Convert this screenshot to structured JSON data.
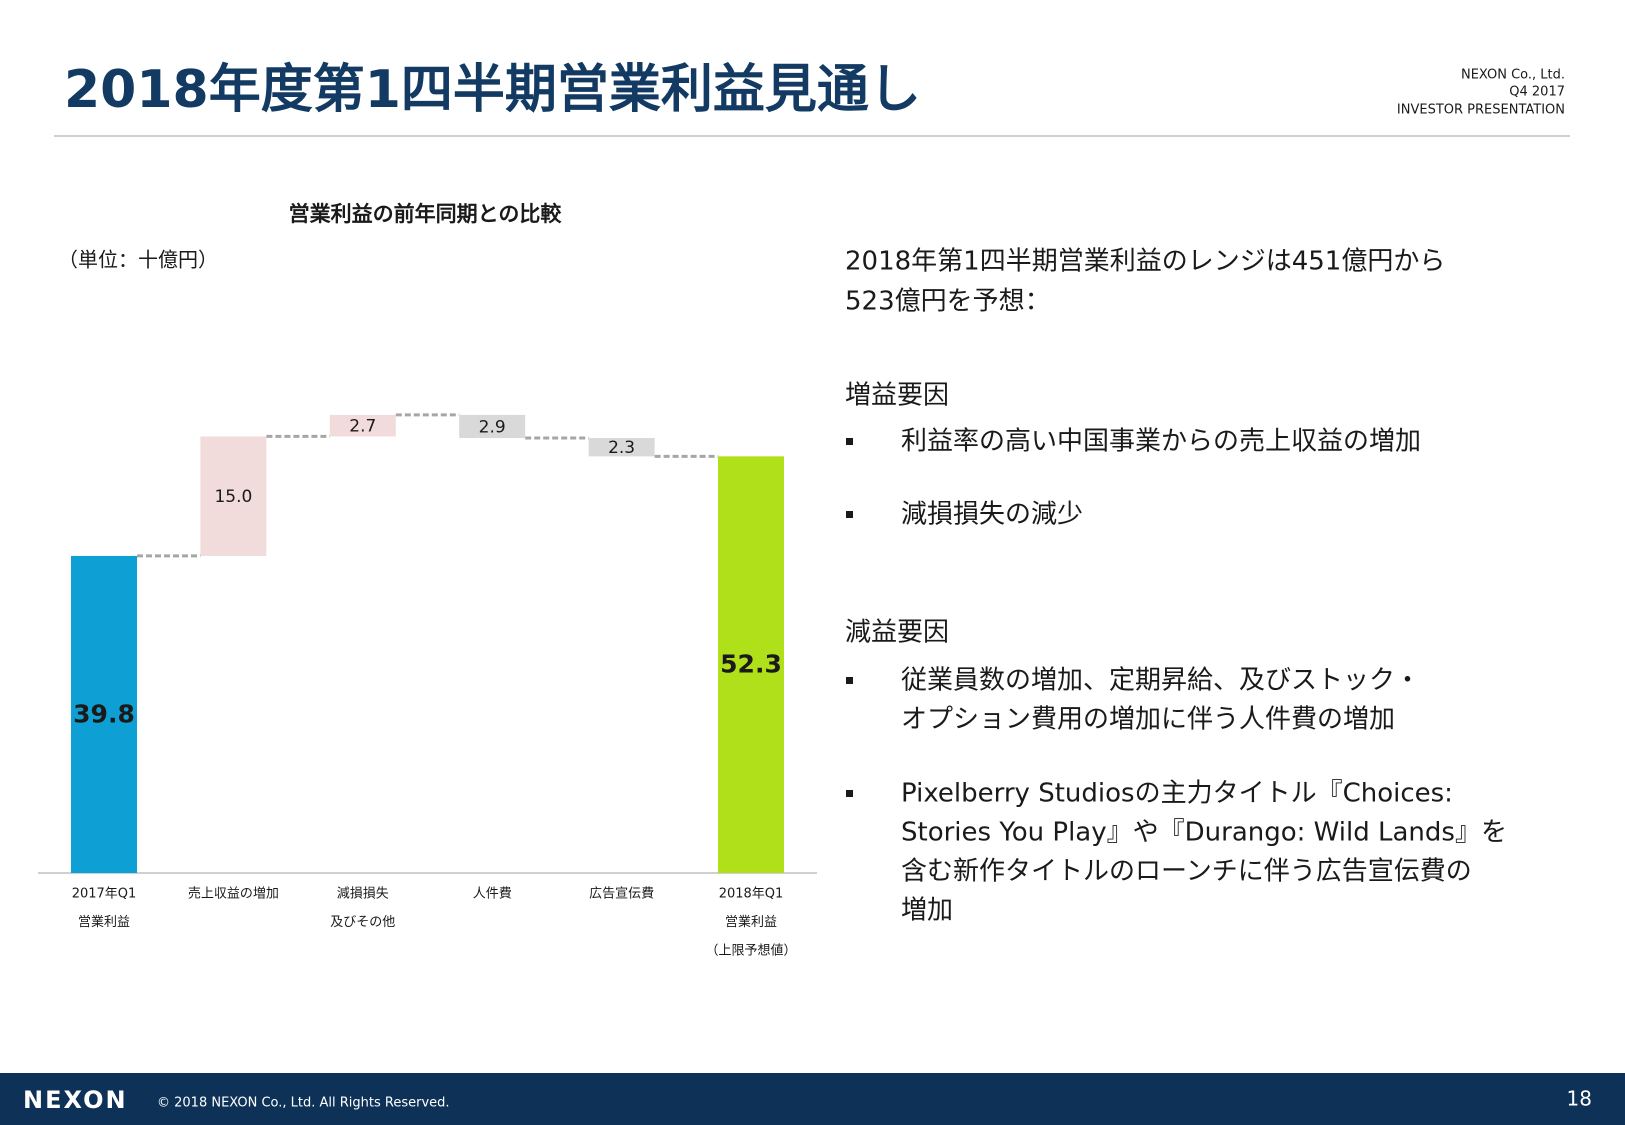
{
  "header": {
    "title": "2018年度第1四半期営業利益見通し",
    "company": [
      "NEXON Co., Ltd.",
      "Q4 2017",
      "INVESTOR PRESENTATION"
    ]
  },
  "chart_data": {
    "type": "waterfall",
    "title": "営業利益の前年同期との比較",
    "unit_label": "（単位：十億円）",
    "categories": [
      [
        "2017年Q1",
        "営業利益"
      ],
      [
        "売上収益の増加"
      ],
      [
        "減損損失",
        "及びその他"
      ],
      [
        "人件費"
      ],
      [
        "広告宣伝費"
      ],
      [
        "2018年Q1",
        "営業利益",
        "（上限予想値）"
      ]
    ],
    "values": [
      39.8,
      15.0,
      2.7,
      2.9,
      2.3,
      52.3
    ],
    "value_labels": [
      "39.8",
      "15.0",
      "2.7",
      "2.9",
      "2.3",
      "52.3"
    ],
    "measures": [
      "absolute",
      "increase",
      "increase",
      "decrease",
      "decrease",
      "absolute"
    ],
    "colors": [
      "#0ea0d4",
      "#f2dcdb",
      "#f2dcdb",
      "#d9d9d9",
      "#d9d9d9",
      "#b0e01a"
    ],
    "ylim": [
      0,
      60
    ]
  },
  "summary": [
    "2018年第1四半期営業利益のレンジは451億円から",
    "523億円を予想："
  ],
  "sections": [
    {
      "heading": "増益要因",
      "items": [
        [
          "利益率の高い中国事業からの売上収益の増加"
        ],
        [
          "減損損失の減少"
        ]
      ]
    },
    {
      "heading": "減益要因",
      "items": [
        [
          "従業員数の増加、定期昇給、及びストック・",
          "オプション費用の増加に伴う人件費の増加"
        ],
        [
          "Pixelberry Studiosの主力タイトル『Choices:",
          "Stories You Play』や『Durango: Wild Lands』を",
          "含む新作タイトルのローンチに伴う広告宣伝費の",
          "増加"
        ]
      ]
    }
  ],
  "footer": {
    "logo": "NEXON",
    "copyright": "© 2018 NEXON Co., Ltd. All Rights Reserved.",
    "page": 18
  }
}
